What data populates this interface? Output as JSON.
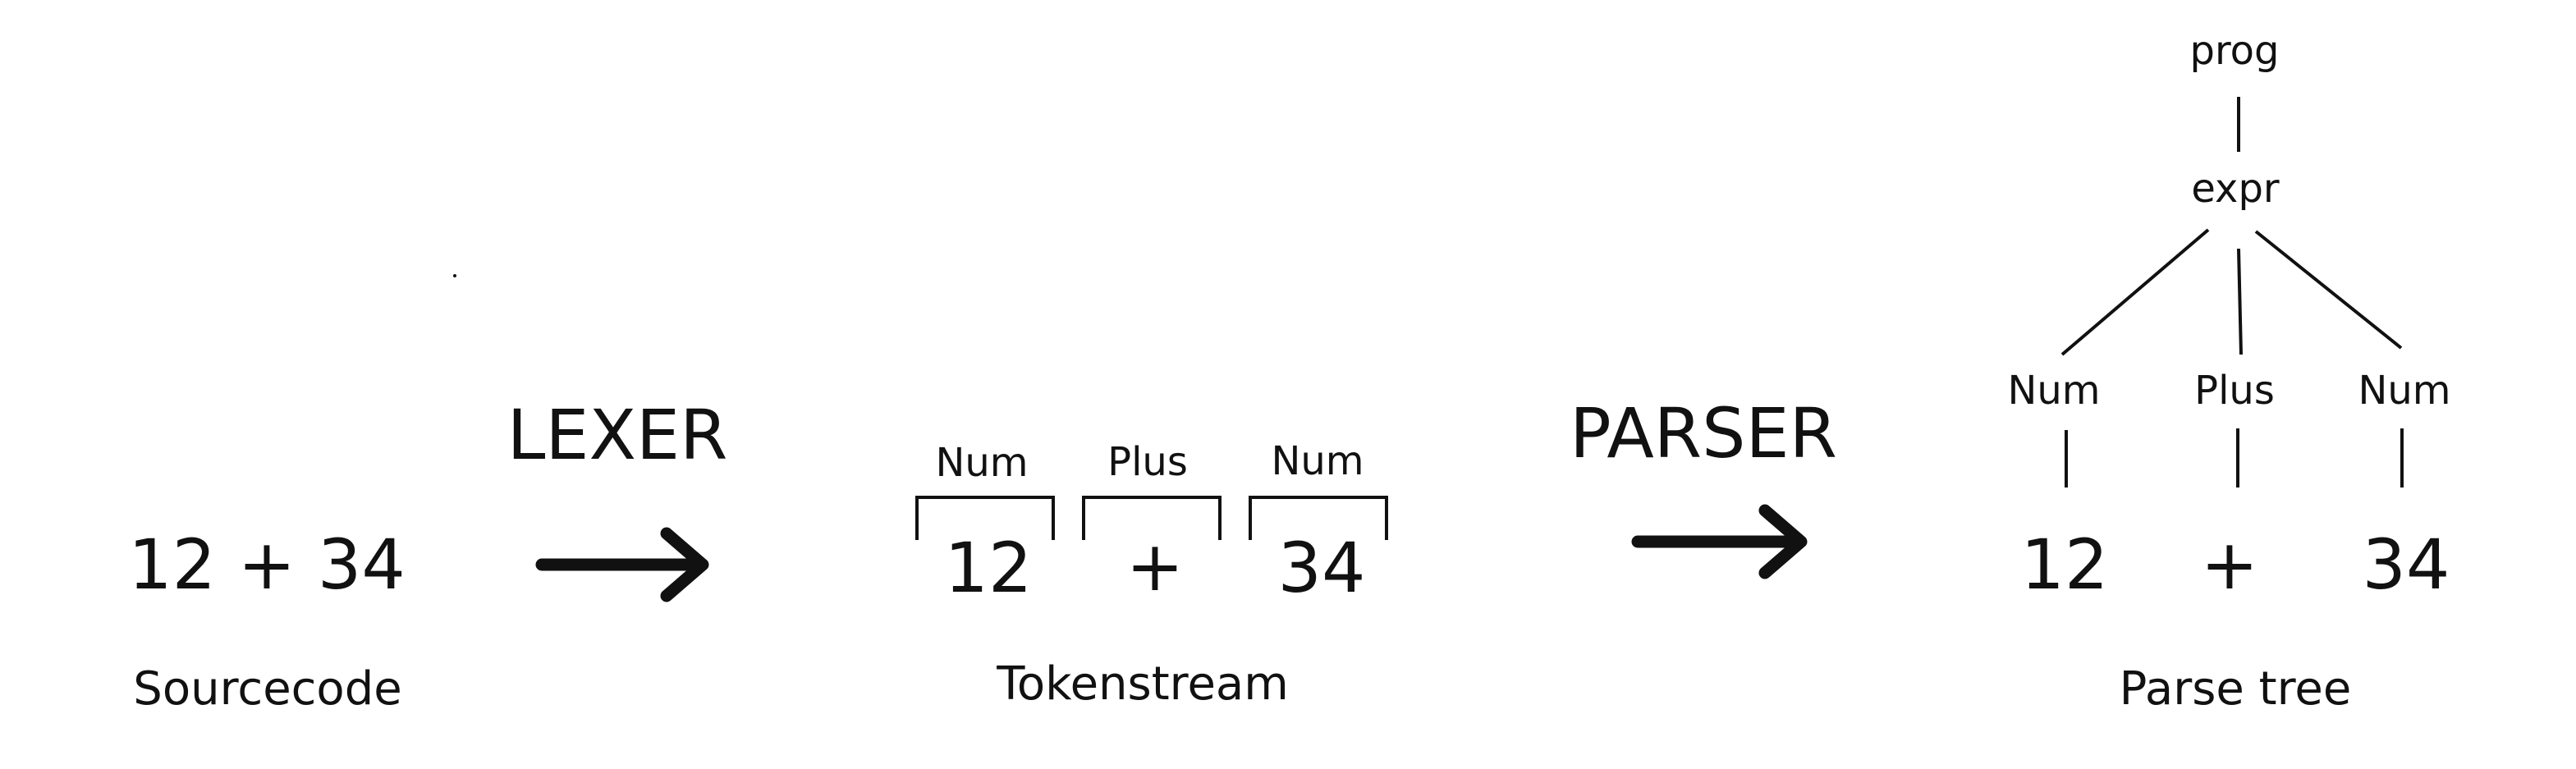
{
  "source": {
    "code": "12 + 34",
    "caption": "Sourcecode"
  },
  "lexer": {
    "label": "LEXER"
  },
  "tokens": {
    "items": [
      {
        "type": "Num",
        "value": "12"
      },
      {
        "type": "Plus",
        "value": "+"
      },
      {
        "type": "Num",
        "value": "34"
      }
    ],
    "caption": "Tokenstream"
  },
  "parser": {
    "label": "PARSER"
  },
  "tree": {
    "root": "prog",
    "expr": "expr",
    "children": [
      {
        "type": "Num",
        "value": "12"
      },
      {
        "type": "Plus",
        "value": "+"
      },
      {
        "type": "Num",
        "value": "34"
      }
    ],
    "caption": "Parse tree"
  }
}
